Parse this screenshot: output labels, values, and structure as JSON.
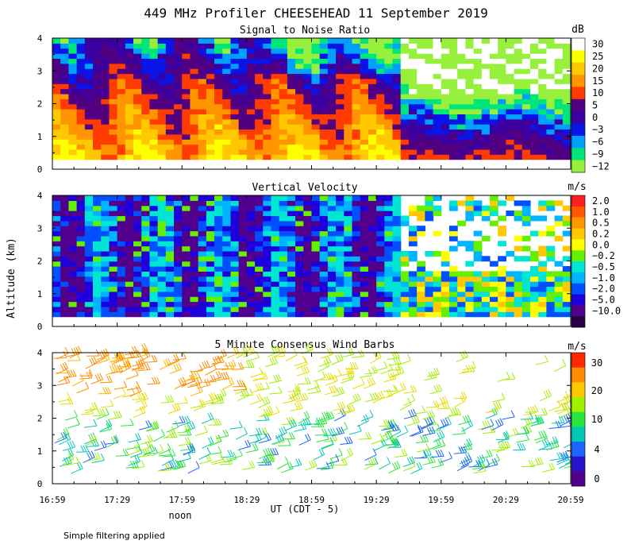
{
  "title": "449 MHz Profiler CHEESEHEAD 11 September 2019",
  "ylabel": "Altitude (km)",
  "xlabel": "UT  (CDT - 5)",
  "noon_label": "noon",
  "footnote": "Simple filtering applied",
  "x_ticks": [
    "16:59",
    "17:29",
    "17:59",
    "18:29",
    "18:59",
    "19:29",
    "19:59",
    "20:29",
    "20:59"
  ],
  "y_ticks": [
    "0",
    "1",
    "2",
    "3",
    "4"
  ],
  "chart_data": [
    {
      "type": "heatmap",
      "title": "Signal to Noise Ratio",
      "unit": "dB",
      "x_range": [
        "16:59",
        "20:59"
      ],
      "ylim": [
        0,
        4
      ],
      "colorbar": {
        "labels": [
          "30",
          "25",
          "20",
          "15",
          "10",
          "5",
          "0",
          "−3",
          "−6",
          "−9",
          "−12"
        ],
        "colors": [
          "#ffffff",
          "#ffff00",
          "#ffc800",
          "#ff9600",
          "#ff3c00",
          "#500080",
          "#3c00a0",
          "#0a14e6",
          "#00a0ff",
          "#00e678",
          "#96f03c"
        ]
      }
    },
    {
      "type": "heatmap",
      "title": "Vertical Velocity",
      "unit": "m/s",
      "x_range": [
        "16:59",
        "20:59"
      ],
      "ylim": [
        0,
        4
      ],
      "colorbar": {
        "labels": [
          "2.0",
          "1.0",
          "0.5",
          "0.2",
          "0.0",
          "−0.2",
          "−0.5",
          "−1.0",
          "−2.0",
          "−5.0",
          "−10.0"
        ],
        "colors": [
          "#ff1e1e",
          "#ff5a00",
          "#ff9600",
          "#ffc800",
          "#ffff00",
          "#64f000",
          "#00e6d2",
          "#00b4ff",
          "#0050ff",
          "#1e00dc",
          "#50008c",
          "#280046"
        ]
      }
    },
    {
      "type": "scatter",
      "title": "5 Minute Consensus Wind Barbs",
      "unit": "m/s",
      "x_range": [
        "16:59",
        "20:59"
      ],
      "ylim": [
        0,
        4
      ],
      "colorbar": {
        "labels": [
          "30",
          "20",
          "10",
          "4",
          "0"
        ],
        "colors": [
          "#ff2800",
          "#ff8c00",
          "#ffc800",
          "#a0f000",
          "#28e63c",
          "#00c8b4",
          "#1e64ff",
          "#2814c8",
          "#50008c"
        ]
      }
    }
  ]
}
